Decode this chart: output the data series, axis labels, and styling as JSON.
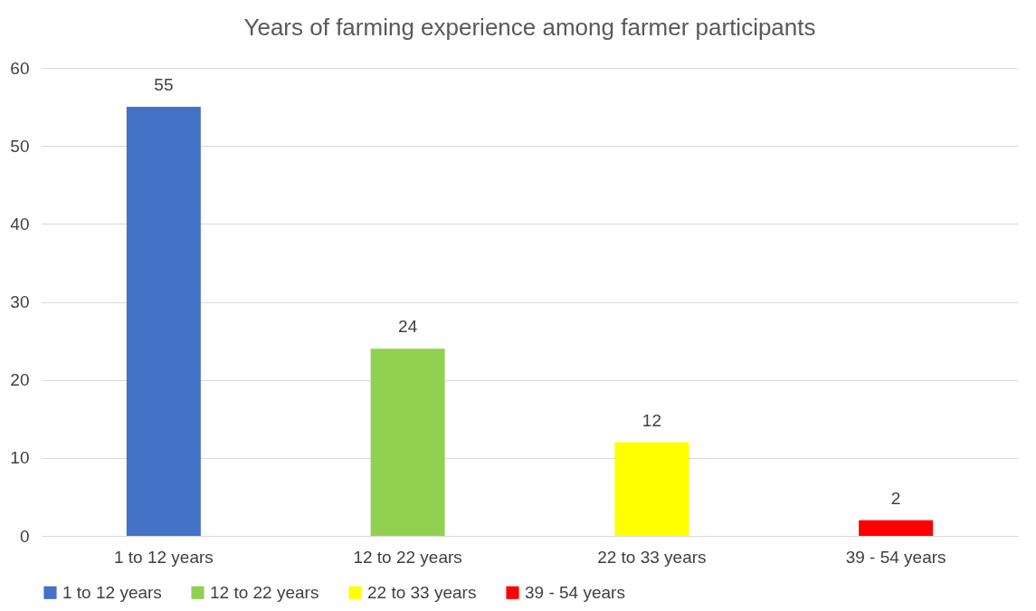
{
  "chart_data": {
    "type": "bar",
    "title": "Years of farming experience among farmer participants",
    "categories": [
      "1 to 12 years",
      "12 to 22 years",
      "22 to 33 years",
      "39 - 54 years"
    ],
    "series": [
      {
        "name": "1 to 12 years",
        "color": "#4472c4",
        "values": [
          55,
          null,
          null,
          null
        ]
      },
      {
        "name": "12 to 22 years",
        "color": "#92d050",
        "values": [
          null,
          24,
          null,
          null
        ]
      },
      {
        "name": "22 to 33 years",
        "color": "#ffff00",
        "values": [
          null,
          null,
          12,
          null
        ]
      },
      {
        "name": "39 - 54 years",
        "color": "#ff0000",
        "values": [
          null,
          null,
          null,
          2
        ]
      }
    ],
    "ylim": [
      0,
      60
    ],
    "yticks": [
      0,
      10,
      20,
      30,
      40,
      50,
      60
    ],
    "grid": "y",
    "legend": "bottom",
    "data_labels": true
  }
}
